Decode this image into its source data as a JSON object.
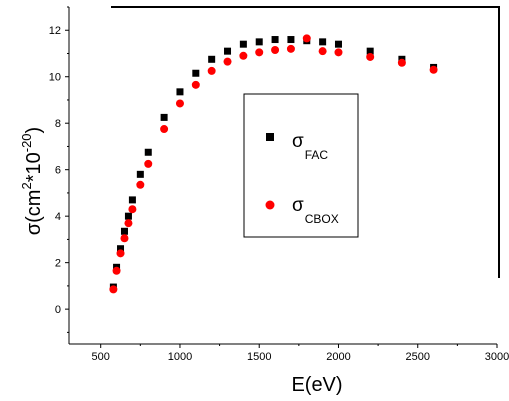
{
  "chart_data": {
    "type": "scatter",
    "xlabel": "E(eV)",
    "ylabel": {
      "prefix": "σ(cm",
      "sup1": "2",
      "mid": "*10",
      "sup2": "-20",
      "suffix": ")"
    },
    "xlim": [
      300,
      3000
    ],
    "ylim": [
      -1.5,
      13
    ],
    "x_ticks": [
      500,
      1000,
      1500,
      2000,
      2500,
      3000
    ],
    "y_ticks": [
      0,
      2,
      4,
      6,
      8,
      10,
      12
    ],
    "grid": false,
    "legend_position": "center-right",
    "series": [
      {
        "symbol": "σ",
        "subscript": "FAC",
        "marker": "square",
        "color": "#000000",
        "x": [
          580,
          600,
          625,
          650,
          675,
          700,
          750,
          800,
          900,
          1000,
          1100,
          1200,
          1300,
          1400,
          1500,
          1600,
          1700,
          1800,
          1900,
          2000,
          2200,
          2400,
          2600
        ],
        "y": [
          0.95,
          1.8,
          2.6,
          3.35,
          4.0,
          4.7,
          5.8,
          6.75,
          8.25,
          9.35,
          10.15,
          10.75,
          11.1,
          11.4,
          11.5,
          11.6,
          11.6,
          11.55,
          11.5,
          11.4,
          11.1,
          10.75,
          10.4
        ]
      },
      {
        "symbol": "σ",
        "subscript": "CBOX",
        "marker": "circle",
        "color": "#ff0000",
        "x": [
          580,
          600,
          625,
          650,
          675,
          700,
          750,
          800,
          900,
          1000,
          1100,
          1200,
          1300,
          1400,
          1500,
          1600,
          1700,
          1800,
          1900,
          2000,
          2200,
          2400,
          2600
        ],
        "y": [
          0.85,
          1.65,
          2.4,
          3.05,
          3.7,
          4.3,
          5.35,
          6.25,
          7.75,
          8.85,
          9.65,
          10.25,
          10.65,
          10.9,
          11.05,
          11.15,
          11.2,
          11.65,
          11.1,
          11.05,
          10.85,
          10.6,
          10.3
        ]
      }
    ]
  }
}
